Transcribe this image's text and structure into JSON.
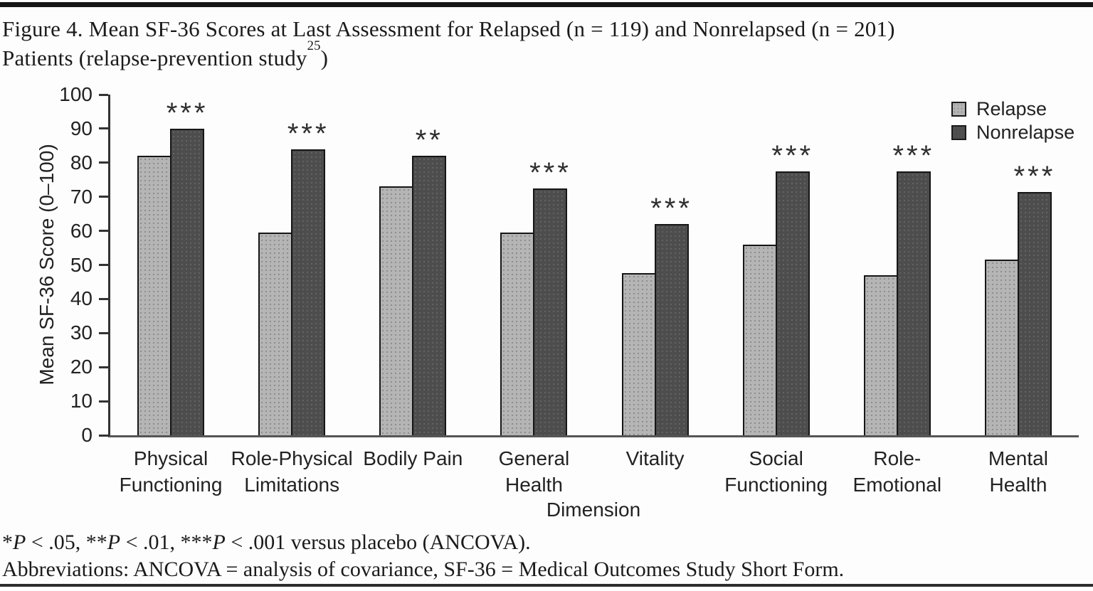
{
  "figure": {
    "title_line1": "Figure 4. Mean SF-36 Scores at Last Assessment for Relapsed (n = 119) and Nonrelapsed (n = 201)",
    "title_line2_parts": [
      {
        "text": "Patients (relapse-prevention study"
      },
      {
        "text": "25",
        "super": true
      },
      {
        "text": ")"
      }
    ]
  },
  "chart_data": {
    "type": "bar",
    "title": "Mean SF-36 Scores at Last Assessment for Relapsed and Nonrelapsed Patients",
    "xlabel": "Dimension",
    "ylabel": "Mean SF-36 Score (0–100)",
    "ylim": [
      0,
      100
    ],
    "ytick_interval": 10,
    "grid": false,
    "legend_position": "top-right",
    "categories": [
      [
        "Physical",
        "Functioning"
      ],
      [
        "Role-Physical",
        "Limitations"
      ],
      [
        "Bodily Pain"
      ],
      [
        "General",
        "Health"
      ],
      [
        "Vitality"
      ],
      [
        "Social",
        "Functioning"
      ],
      [
        "Role-",
        "Emotional"
      ],
      [
        "Mental",
        "Health"
      ]
    ],
    "series": [
      {
        "name": "Relapse",
        "color": "#b5b5b5",
        "values": [
          82,
          59.5,
          73,
          59.5,
          47.5,
          56,
          47,
          51.5
        ]
      },
      {
        "name": "Nonrelapse",
        "color": "#4d4d4d",
        "values": [
          90,
          84,
          82,
          72.5,
          62,
          77.5,
          77.5,
          71.5
        ]
      }
    ],
    "significance_markers": [
      "***",
      "***",
      "**",
      "***",
      "***",
      "***",
      "***",
      "***"
    ]
  },
  "footnotes": {
    "line1_parts": [
      {
        "text": "*"
      },
      {
        "text": "P",
        "italic": true
      },
      {
        "text": " < .05, **"
      },
      {
        "text": "P",
        "italic": true
      },
      {
        "text": " < .01, ***"
      },
      {
        "text": "P",
        "italic": true
      },
      {
        "text": " < .001 versus placebo (ANCOVA)."
      }
    ],
    "line2": "Abbreviations: ANCOVA = analysis of covariance, SF-36 = Medical Outcomes Study Short Form."
  },
  "colors": {
    "relapse_bar": "#b5b5b5",
    "nonrelapse_bar": "#4d4d4d",
    "bar_border": "#161616",
    "axis": "#333333",
    "baseline": "#555555",
    "text": "#1c1c1c",
    "top_bar": "#161616",
    "bottom_rule": "#2c2c2c",
    "background": "#fdfdfd"
  }
}
